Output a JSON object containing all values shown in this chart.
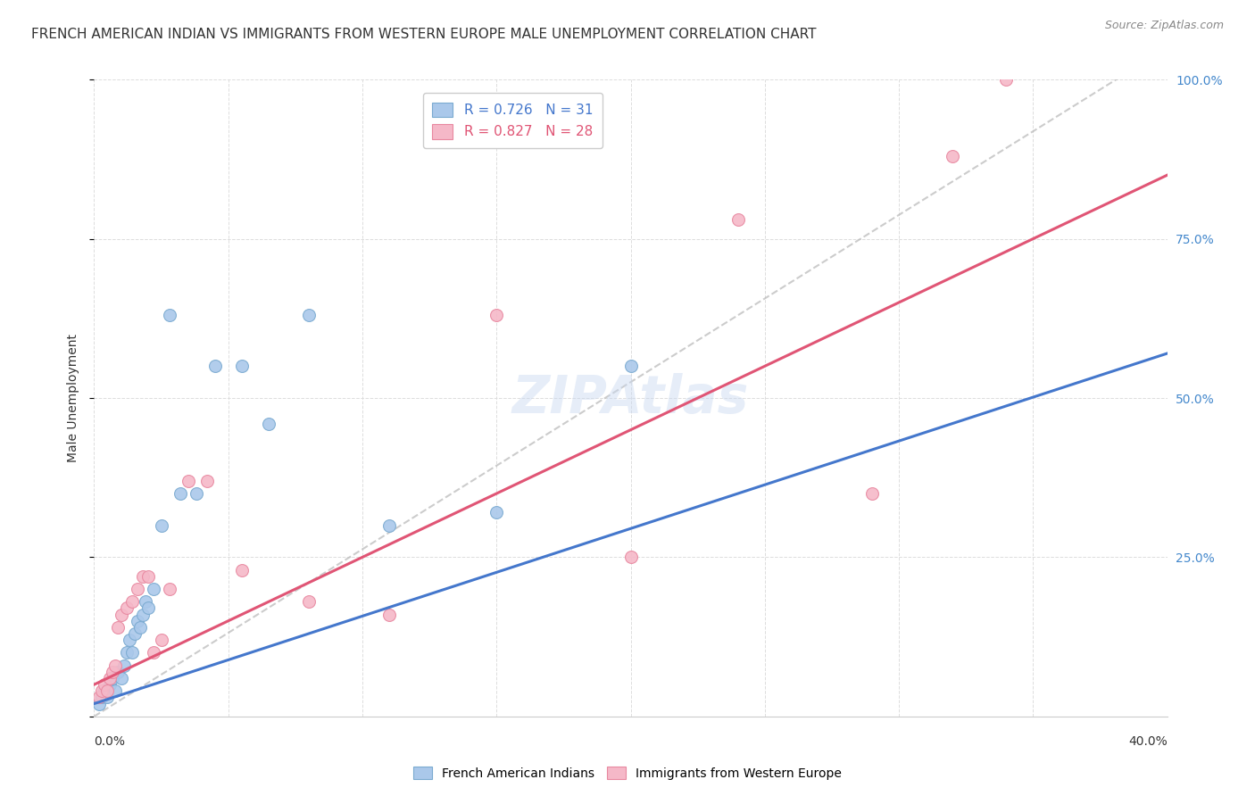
{
  "title": "FRENCH AMERICAN INDIAN VS IMMIGRANTS FROM WESTERN EUROPE MALE UNEMPLOYMENT CORRELATION CHART",
  "source": "Source: ZipAtlas.com",
  "ylabel": "Male Unemployment",
  "xlim": [
    0.0,
    0.4
  ],
  "ylim": [
    0.0,
    1.0
  ],
  "yticks": [
    0.0,
    0.25,
    0.5,
    0.75,
    1.0
  ],
  "ytick_labels": [
    "",
    "25.0%",
    "50.0%",
    "75.0%",
    "100.0%"
  ],
  "xticks": [
    0.0,
    0.05,
    0.1,
    0.15,
    0.2,
    0.25,
    0.3,
    0.35,
    0.4
  ],
  "legend_entries": [
    {
      "label": "R = 0.726   N = 31",
      "color": "#6699cc"
    },
    {
      "label": "R = 0.827   N = 28",
      "color": "#e05575"
    }
  ],
  "series1_label": "French American Indians",
  "series2_label": "Immigrants from Western Europe",
  "series1_color": "#aac8ea",
  "series2_color": "#f5b8c8",
  "series1_edge": "#7aaad0",
  "series2_edge": "#e888a0",
  "regression1_color": "#4477cc",
  "regression2_color": "#e05575",
  "dashed_color": "#bbbbbb",
  "background_color": "#ffffff",
  "grid_color": "#dddddd",
  "title_color": "#333333",
  "source_color": "#888888",
  "right_axis_color": "#4488cc",
  "series1_x": [
    0.002,
    0.003,
    0.004,
    0.005,
    0.006,
    0.007,
    0.008,
    0.009,
    0.01,
    0.011,
    0.012,
    0.013,
    0.014,
    0.015,
    0.016,
    0.017,
    0.018,
    0.019,
    0.02,
    0.022,
    0.025,
    0.028,
    0.032,
    0.038,
    0.045,
    0.055,
    0.065,
    0.08,
    0.11,
    0.15,
    0.2
  ],
  "series1_y": [
    0.02,
    0.03,
    0.04,
    0.03,
    0.05,
    0.06,
    0.04,
    0.07,
    0.06,
    0.08,
    0.1,
    0.12,
    0.1,
    0.13,
    0.15,
    0.14,
    0.16,
    0.18,
    0.17,
    0.2,
    0.3,
    0.63,
    0.35,
    0.35,
    0.55,
    0.55,
    0.46,
    0.63,
    0.3,
    0.32,
    0.55
  ],
  "series2_x": [
    0.002,
    0.003,
    0.004,
    0.005,
    0.006,
    0.007,
    0.008,
    0.009,
    0.01,
    0.012,
    0.014,
    0.016,
    0.018,
    0.02,
    0.022,
    0.025,
    0.028,
    0.035,
    0.042,
    0.055,
    0.08,
    0.11,
    0.15,
    0.2,
    0.24,
    0.29,
    0.32,
    0.34
  ],
  "series2_y": [
    0.03,
    0.04,
    0.05,
    0.04,
    0.06,
    0.07,
    0.08,
    0.14,
    0.16,
    0.17,
    0.18,
    0.2,
    0.22,
    0.22,
    0.1,
    0.12,
    0.2,
    0.37,
    0.37,
    0.23,
    0.18,
    0.16,
    0.63,
    0.25,
    0.78,
    0.35,
    0.88,
    1.0
  ],
  "blue_line": [
    [
      0.0,
      0.4
    ],
    [
      0.02,
      0.57
    ]
  ],
  "pink_line": [
    [
      0.0,
      0.4
    ],
    [
      0.05,
      0.85
    ]
  ],
  "dashed_line": [
    [
      0.0,
      0.4
    ],
    [
      0.0,
      1.05
    ]
  ],
  "marker_size": 100,
  "title_fontsize": 11,
  "axis_label_fontsize": 10,
  "legend_fontsize": 11,
  "tick_fontsize": 10,
  "watermark": "ZIPAtlas"
}
